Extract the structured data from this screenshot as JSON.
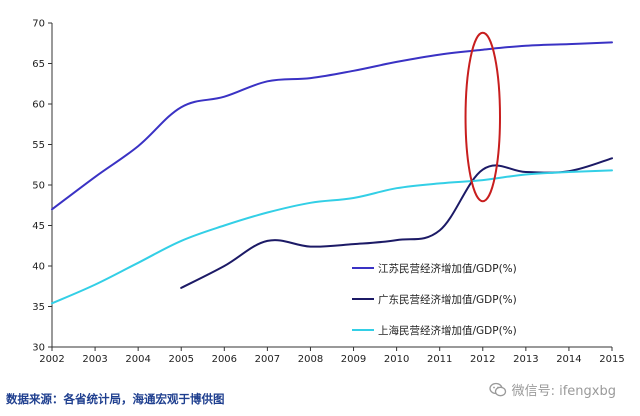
{
  "source_note": "数据来源：各省统计局，海通宏观于博供图",
  "watermark": {
    "icon": "wechat-icon",
    "text": "微信号: ifengxbg"
  },
  "colors": {
    "jiangsu": "#3a32c4",
    "guangdong": "#1c1a66",
    "shanghai": "#33cfe6",
    "highlight": "#c81e1e",
    "axis": "#333333"
  },
  "chart_data": {
    "type": "line",
    "title": "",
    "xlabel": "",
    "ylabel": "",
    "x": [
      2002,
      2003,
      2004,
      2005,
      2006,
      2007,
      2008,
      2009,
      2010,
      2011,
      2012,
      2013,
      2014,
      2015
    ],
    "xlim": [
      2002,
      2015
    ],
    "ylim": [
      30,
      70
    ],
    "yticks": [
      30,
      35,
      40,
      45,
      50,
      55,
      60,
      65,
      70
    ],
    "grid": false,
    "legend_position": "lower-right",
    "series": [
      {
        "name": "江苏民营经济增加值/GDP(%)",
        "color_key": "jiangsu",
        "values": [
          47.0,
          51.0,
          54.8,
          59.6,
          60.9,
          62.8,
          63.2,
          64.1,
          65.2,
          66.1,
          66.7,
          67.2,
          67.4,
          67.6
        ]
      },
      {
        "name": "广东民营经济增加值/GDP(%)",
        "color_key": "guangdong",
        "values": [
          null,
          null,
          null,
          37.3,
          40.0,
          43.1,
          42.4,
          42.7,
          43.2,
          44.4,
          51.9,
          51.6,
          51.7,
          53.3
        ]
      },
      {
        "name": "上海民营经济增加值/GDP(%)",
        "color_key": "shanghai",
        "values": [
          35.4,
          37.7,
          40.4,
          43.1,
          45.0,
          46.6,
          47.8,
          48.4,
          49.6,
          50.2,
          50.6,
          51.3,
          51.6,
          51.8
        ]
      }
    ],
    "annotations": [
      {
        "type": "ellipse",
        "x": 2012,
        "y_center": 58.4,
        "y_radius": 10.4,
        "x_radius": 0.4,
        "color_key": "highlight"
      }
    ]
  }
}
